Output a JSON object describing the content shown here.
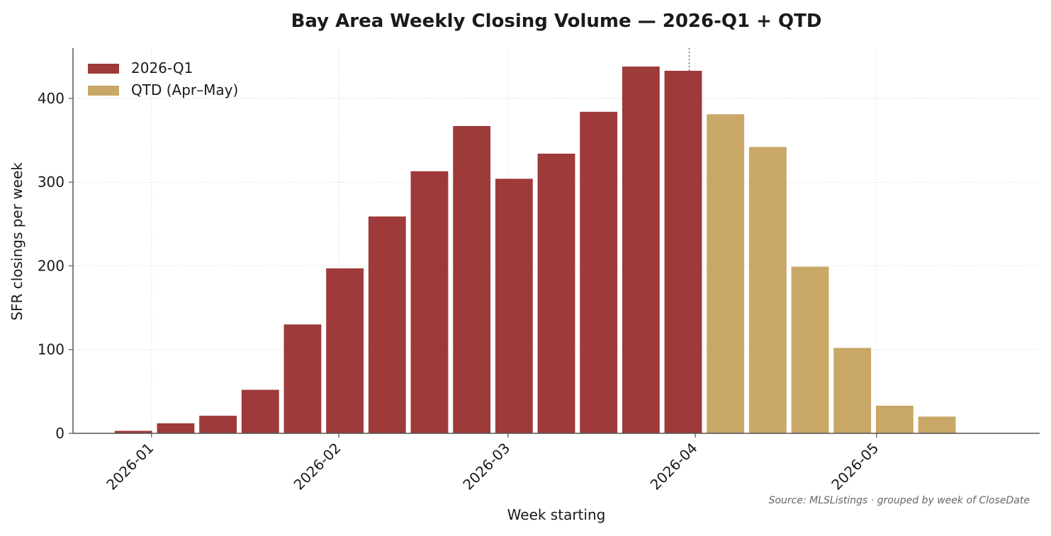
{
  "chart_data": {
    "type": "bar",
    "title": "Bay Area Weekly Closing Volume — 2026-Q1 + QTD",
    "xlabel": "Week starting",
    "ylabel": "SFR closings per week",
    "source": "Source: MLSListings · grouped by week of CloseDate",
    "ylim": [
      0,
      460
    ],
    "yticks": [
      0,
      100,
      200,
      300,
      400
    ],
    "x_tick_labels": [
      "2026-01",
      "2026-02",
      "2026-03",
      "2026-04",
      "2026-05"
    ],
    "x_ticks": [
      "2026-01-01",
      "2026-02-01",
      "2026-03-01",
      "2026-04-01",
      "2026-05-01"
    ],
    "x_range": [
      "2025-12-19",
      "2026-05-28"
    ],
    "quarter_boundary": "2026-03-31",
    "grid": true,
    "legend_position": "top-left",
    "series": [
      {
        "name": "2026-Q1",
        "color": "#9e3a3a",
        "x": [
          "2025-12-29",
          "2026-01-05",
          "2026-01-12",
          "2026-01-19",
          "2026-01-26",
          "2026-02-02",
          "2026-02-09",
          "2026-02-16",
          "2026-02-23",
          "2026-03-02",
          "2026-03-09",
          "2026-03-16",
          "2026-03-23",
          "2026-03-30"
        ],
        "values": [
          3,
          12,
          21,
          52,
          130,
          197,
          259,
          313,
          367,
          304,
          334,
          384,
          438,
          433
        ]
      },
      {
        "name": "QTD (Apr–May)",
        "color": "#c9a766",
        "x": [
          "2026-04-06",
          "2026-04-13",
          "2026-04-20",
          "2026-04-27",
          "2026-05-04",
          "2026-05-11"
        ],
        "values": [
          381,
          342,
          199,
          102,
          33,
          20
        ]
      }
    ]
  }
}
